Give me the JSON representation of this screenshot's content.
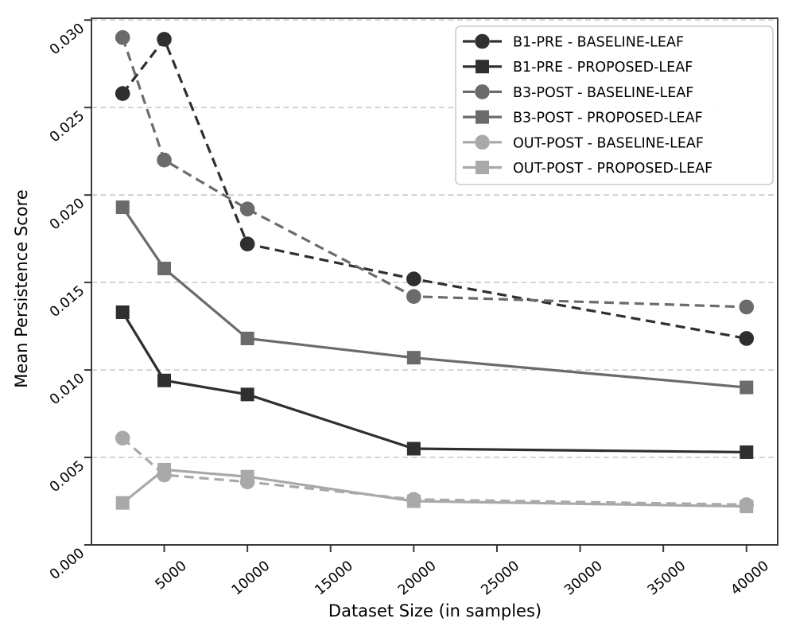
{
  "figure": {
    "background": "#ffffff",
    "text_color": "#000000"
  },
  "chart_data": {
    "type": "line",
    "title": "",
    "xlabel": "Dataset Size (in samples)",
    "ylabel": "Mean Persistence Score",
    "x": [
      2500,
      5000,
      10000,
      20000,
      40000
    ],
    "xlim": [
      625,
      41875
    ],
    "ylim": [
      0,
      0.0301
    ],
    "x_ticks": [
      5000,
      10000,
      15000,
      20000,
      25000,
      30000,
      35000,
      40000
    ],
    "x_tick_labels": [
      "5000",
      "10000",
      "15000",
      "20000",
      "25000",
      "30000",
      "35000",
      "40000"
    ],
    "y_ticks": [
      0,
      0.005,
      0.01,
      0.015,
      0.02,
      0.025,
      0.03
    ],
    "y_tick_labels": [
      "0.000",
      "0.005",
      "0.010",
      "0.015",
      "0.020",
      "0.025",
      "0.030"
    ],
    "grid": "horizontal-dashed-gray",
    "grid_color": "#c3c3c3",
    "spine_color": "#3a3a3a",
    "legend_position": "upper-right",
    "series": [
      {
        "name": "B1-PRE - BASELINE-LEAF",
        "marker": "circle",
        "line": "dashed",
        "color": "#2f2f2f",
        "values": [
          0.0258,
          0.0289,
          0.0172,
          0.0152,
          0.0118
        ]
      },
      {
        "name": "B1-PRE - PROPOSED-LEAF",
        "marker": "square",
        "line": "solid",
        "color": "#2f2f2f",
        "values": [
          0.0133,
          0.0094,
          0.0086,
          0.0055,
          0.0053
        ]
      },
      {
        "name": "B3-POST - BASELINE-LEAF",
        "marker": "circle",
        "line": "dashed",
        "color": "#6b6b6b",
        "values": [
          0.029,
          0.022,
          0.0192,
          0.0142,
          0.0136
        ]
      },
      {
        "name": "B3-POST - PROPOSED-LEAF",
        "marker": "square",
        "line": "solid",
        "color": "#6b6b6b",
        "values": [
          0.0193,
          0.0158,
          0.0118,
          0.0107,
          0.009
        ]
      },
      {
        "name": "OUT-POST - BASELINE-LEAF",
        "marker": "circle",
        "line": "dashed",
        "color": "#a9a9a9",
        "values": [
          0.0061,
          0.004,
          0.0036,
          0.0026,
          0.0023
        ]
      },
      {
        "name": "OUT-POST - PROPOSED-LEAF",
        "marker": "square",
        "line": "solid",
        "color": "#a9a9a9",
        "values": [
          0.0024,
          0.0043,
          0.0039,
          0.0025,
          0.0022
        ]
      }
    ]
  }
}
